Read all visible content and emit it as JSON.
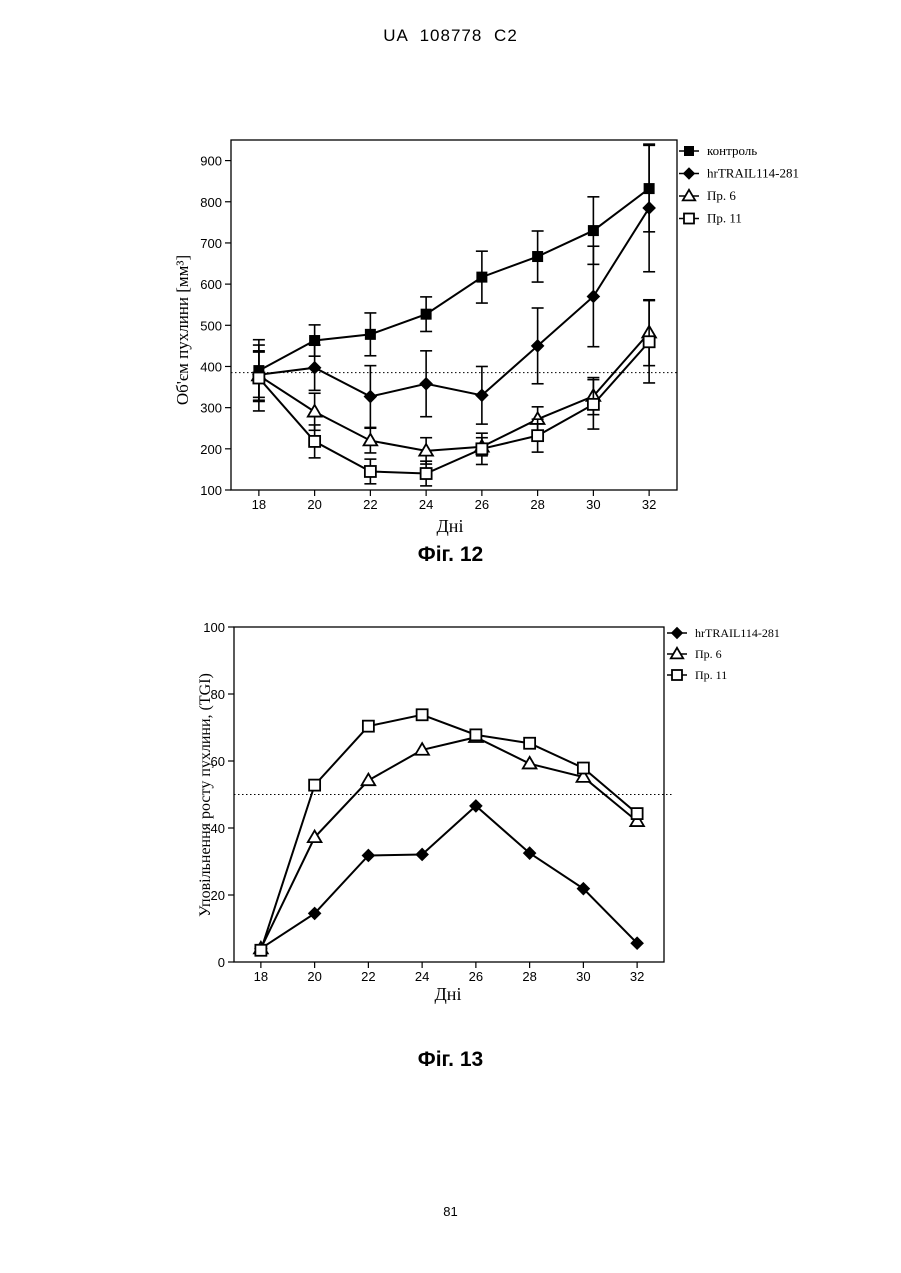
{
  "header": "UA   108778   C2",
  "page_number": "81",
  "chart_data": [
    {
      "type": "line",
      "caption": "Фіг. 12",
      "xlabel": "Дні",
      "ylabel": "Об'єм пухлини [мм³]",
      "x": [
        18,
        20,
        22,
        24,
        26,
        28,
        30,
        32
      ],
      "xlim": [
        17,
        33
      ],
      "ylim": [
        100,
        950
      ],
      "yticks": [
        100,
        200,
        300,
        400,
        500,
        600,
        700,
        800,
        900
      ],
      "reference_line": 385,
      "series": [
        {
          "name": "контроль",
          "marker": "square-filled",
          "values": [
            390,
            463,
            478,
            527,
            617,
            667,
            730,
            832
          ],
          "errors": [
            75,
            38,
            52,
            42,
            63,
            62,
            82,
            105
          ]
        },
        {
          "name": "hrTRAIL114-281",
          "marker": "diamond-filled",
          "values": [
            380,
            397,
            327,
            358,
            330,
            450,
            570,
            785
          ],
          "errors": [
            55,
            55,
            75,
            80,
            70,
            92,
            122,
            155
          ]
        },
        {
          "name": "Пр. 6",
          "marker": "triangle-open",
          "values": [
            378,
            290,
            220,
            195,
            205,
            272,
            328,
            482
          ],
          "errors": [
            60,
            45,
            30,
            32,
            22,
            30,
            45,
            80
          ]
        },
        {
          "name": "Пр. 11",
          "marker": "square-open",
          "values": [
            372,
            218,
            145,
            140,
            200,
            232,
            308,
            460
          ],
          "errors": [
            80,
            40,
            30,
            30,
            38,
            40,
            60,
            100
          ]
        }
      ]
    },
    {
      "type": "line",
      "caption": "Фіг. 13",
      "xlabel": "Дні",
      "ylabel": "Уповільнення росту пухлини, (TGI)",
      "x": [
        18,
        20,
        22,
        24,
        26,
        28,
        30,
        32
      ],
      "xlim": [
        17,
        33
      ],
      "ylim": [
        0,
        100
      ],
      "yticks": [
        0,
        20,
        40,
        60,
        80,
        100
      ],
      "reference_line": 50,
      "series": [
        {
          "name": "hrTRAIL114-281",
          "marker": "diamond-filled",
          "values": [
            4,
            14.5,
            31.8,
            32.1,
            46.6,
            32.5,
            21.9,
            5.6
          ]
        },
        {
          "name": "Пр. 6",
          "marker": "triangle-open",
          "values": [
            4,
            37.2,
            54.2,
            63.3,
            67.1,
            59.2,
            55.2,
            42
          ]
        },
        {
          "name": "Пр. 11",
          "marker": "square-open",
          "values": [
            3.5,
            52.8,
            70.4,
            73.8,
            67.8,
            65.3,
            57.9,
            44.3
          ]
        }
      ]
    }
  ]
}
